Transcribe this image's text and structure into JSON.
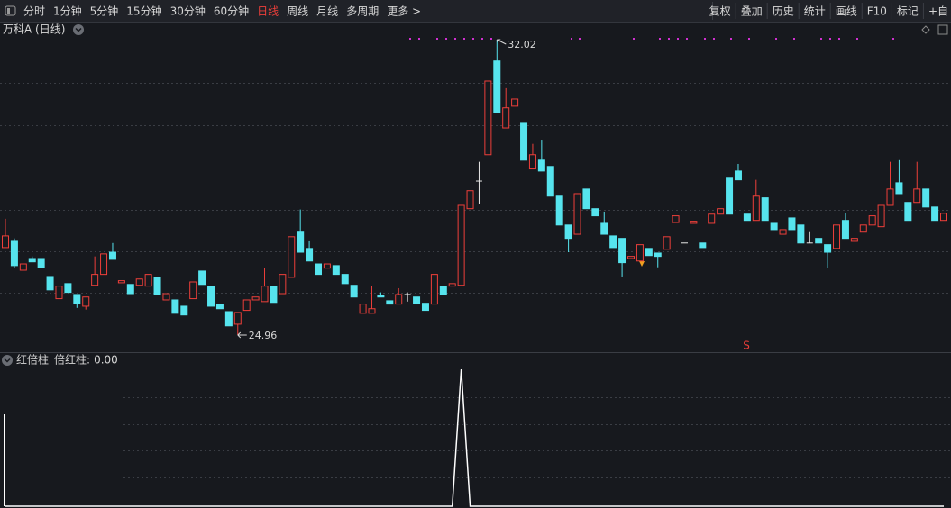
{
  "toolbar": {
    "periods": [
      {
        "label": "分时"
      },
      {
        "label": "1分钟"
      },
      {
        "label": "5分钟"
      },
      {
        "label": "15分钟"
      },
      {
        "label": "30分钟"
      },
      {
        "label": "60分钟"
      },
      {
        "label": "日线",
        "active": true
      },
      {
        "label": "周线"
      },
      {
        "label": "月线"
      },
      {
        "label": "多周期"
      },
      {
        "label": "更多 >"
      }
    ],
    "tools": [
      "复权",
      "叠加",
      "历史",
      "统计",
      "画线",
      "F10",
      "标记",
      "+自"
    ]
  },
  "chart_data": {
    "type": "candlestick",
    "title": "万科A (日线)",
    "up_color": "#ee3f3a",
    "down_color": "#56e4ee",
    "signal_label": "S",
    "ohlc": [
      [
        27.05,
        27.74,
        27.05,
        27.33
      ],
      [
        27.2,
        27.27,
        26.56,
        26.62
      ],
      [
        26.51,
        26.66,
        26.51,
        26.66
      ],
      [
        26.79,
        26.84,
        26.71,
        26.71
      ],
      [
        26.79,
        26.79,
        26.58,
        26.58
      ],
      [
        26.36,
        26.36,
        26.04,
        26.04
      ],
      [
        25.83,
        26.13,
        25.83,
        26.13
      ],
      [
        26.19,
        26.19,
        25.98,
        25.98
      ],
      [
        25.93,
        25.93,
        25.61,
        25.72
      ],
      [
        25.65,
        25.87,
        25.57,
        25.87
      ],
      [
        26.15,
        26.84,
        26.15,
        26.41
      ],
      [
        26.41,
        26.9,
        26.41,
        26.9
      ],
      [
        26.94,
        27.16,
        26.77,
        26.77
      ],
      [
        26.21,
        26.26,
        26.21,
        26.26
      ],
      [
        26.17,
        26.17,
        25.95,
        25.95
      ],
      [
        26.15,
        26.3,
        26.15,
        26.3
      ],
      [
        26.13,
        26.41,
        26.13,
        26.41
      ],
      [
        26.34,
        26.34,
        25.93,
        25.93
      ],
      [
        25.8,
        25.95,
        25.8,
        25.95
      ],
      [
        25.8,
        25.8,
        25.48,
        25.48
      ],
      [
        25.65,
        25.65,
        25.44,
        25.44
      ],
      [
        25.83,
        26.23,
        25.83,
        26.23
      ],
      [
        26.49,
        26.49,
        26.17,
        26.17
      ],
      [
        26.13,
        26.13,
        25.65,
        25.65
      ],
      [
        25.7,
        25.7,
        25.59,
        25.59
      ],
      [
        25.52,
        25.52,
        25.18,
        25.18
      ],
      [
        25.22,
        25.5,
        24.96,
        25.5
      ],
      [
        25.55,
        25.8,
        25.55,
        25.8
      ],
      [
        25.8,
        25.87,
        25.8,
        25.87
      ],
      [
        25.76,
        26.56,
        25.76,
        26.13
      ],
      [
        26.13,
        26.13,
        25.74,
        25.74
      ],
      [
        25.95,
        26.41,
        25.95,
        26.41
      ],
      [
        26.34,
        27.31,
        26.34,
        27.31
      ],
      [
        27.42,
        27.96,
        26.94,
        26.94
      ],
      [
        27.03,
        27.2,
        26.73,
        26.73
      ],
      [
        26.66,
        26.66,
        26.41,
        26.41
      ],
      [
        26.56,
        26.66,
        26.56,
        26.66
      ],
      [
        26.62,
        26.62,
        26.41,
        26.41
      ],
      [
        26.41,
        26.41,
        26.19,
        26.19
      ],
      [
        26.15,
        26.15,
        25.87,
        25.87
      ],
      [
        25.48,
        25.7,
        25.48,
        25.7
      ],
      [
        25.48,
        26.13,
        25.48,
        25.59
      ],
      [
        25.91,
        25.98,
        25.87,
        25.87
      ],
      [
        25.78,
        25.78,
        25.7,
        25.7
      ],
      [
        25.7,
        26.08,
        25.7,
        25.93
      ],
      [
        25.93,
        25.98,
        25.76,
        25.93
      ],
      [
        25.87,
        25.87,
        25.72,
        25.72
      ],
      [
        25.72,
        25.72,
        25.55,
        25.55
      ],
      [
        25.7,
        26.41,
        25.7,
        26.41
      ],
      [
        26.13,
        26.13,
        25.93,
        25.93
      ],
      [
        26.13,
        26.19,
        26.13,
        26.19
      ],
      [
        26.15,
        28.06,
        26.15,
        28.06
      ],
      [
        27.98,
        28.41,
        27.98,
        28.41
      ],
      [
        28.64,
        29.1,
        28.09,
        28.64
      ],
      [
        29.27,
        31.03,
        29.27,
        31.03
      ],
      [
        31.51,
        32.02,
        30.28,
        30.28
      ],
      [
        29.91,
        30.86,
        29.91,
        30.39
      ],
      [
        30.43,
        30.6,
        30.43,
        30.6
      ],
      [
        30.02,
        30.02,
        29.14,
        29.14
      ],
      [
        28.93,
        29.53,
        28.93,
        29.27
      ],
      [
        29.14,
        29.63,
        28.88,
        28.88
      ],
      [
        28.99,
        28.99,
        28.28,
        28.28
      ],
      [
        28.28,
        28.28,
        27.59,
        27.59
      ],
      [
        27.59,
        27.59,
        26.94,
        27.27
      ],
      [
        27.37,
        28.34,
        27.37,
        28.34
      ],
      [
        28.45,
        28.45,
        27.98,
        27.98
      ],
      [
        27.98,
        27.98,
        27.81,
        27.81
      ],
      [
        27.63,
        27.91,
        27.37,
        27.37
      ],
      [
        27.33,
        27.33,
        27.05,
        27.05
      ],
      [
        27.27,
        27.27,
        26.36,
        26.69
      ],
      [
        26.79,
        26.84,
        26.79,
        26.84
      ],
      [
        26.73,
        27.12,
        26.73,
        27.12
      ],
      [
        27.03,
        27.03,
        26.86,
        26.86
      ],
      [
        26.92,
        26.92,
        26.58,
        26.84
      ],
      [
        27.01,
        27.31,
        27.01,
        27.31
      ],
      [
        27.65,
        27.81,
        27.65,
        27.81
      ],
      [
        27.16,
        27.16,
        27.16,
        27.16
      ],
      [
        27.63,
        27.68,
        27.63,
        27.68
      ],
      [
        27.16,
        27.16,
        27.05,
        27.05
      ],
      [
        27.63,
        27.85,
        27.63,
        27.85
      ],
      [
        27.85,
        27.98,
        27.85,
        27.98
      ],
      [
        28.71,
        28.71,
        27.85,
        27.85
      ],
      [
        28.88,
        29.05,
        28.67,
        28.67
      ],
      [
        27.85,
        27.85,
        27.7,
        27.7
      ],
      [
        27.7,
        28.67,
        27.7,
        28.28
      ],
      [
        28.24,
        28.24,
        27.7,
        27.7
      ],
      [
        27.63,
        27.63,
        27.48,
        27.48
      ],
      [
        27.37,
        27.48,
        27.37,
        27.48
      ],
      [
        27.76,
        27.76,
        27.48,
        27.48
      ],
      [
        27.59,
        27.59,
        27.16,
        27.16
      ],
      [
        27.16,
        27.42,
        27.16,
        27.16
      ],
      [
        27.27,
        27.27,
        27.16,
        27.16
      ],
      [
        27.12,
        27.12,
        26.56,
        26.94
      ],
      [
        27.03,
        27.59,
        27.03,
        27.59
      ],
      [
        27.7,
        27.87,
        27.27,
        27.27
      ],
      [
        27.2,
        27.27,
        27.2,
        27.27
      ],
      [
        27.42,
        27.59,
        27.42,
        27.59
      ],
      [
        27.59,
        27.81,
        27.59,
        27.81
      ],
      [
        27.55,
        28.06,
        27.55,
        28.06
      ],
      [
        28.06,
        29.1,
        28.06,
        28.45
      ],
      [
        28.6,
        29.14,
        28.34,
        28.34
      ],
      [
        28.13,
        28.13,
        27.7,
        27.7
      ],
      [
        28.13,
        29.1,
        28.13,
        28.45
      ],
      [
        28.45,
        28.45,
        28.02,
        28.02
      ],
      [
        28.02,
        28.02,
        27.7,
        27.7
      ],
      [
        27.7,
        27.87,
        27.7,
        27.87
      ]
    ],
    "indicator": {
      "title": "红倍柱",
      "name": "倍红柱:",
      "value_label": "0.00",
      "color": "#ffffff",
      "values": [
        0,
        0,
        0,
        0,
        0,
        0,
        0,
        0,
        0,
        0,
        0,
        0,
        0,
        0,
        0,
        0,
        0,
        0,
        0,
        0,
        0,
        0,
        0,
        0,
        0,
        0,
        0,
        0,
        0,
        0,
        0,
        0,
        0,
        0,
        0,
        0,
        0,
        0,
        0,
        0,
        0,
        0,
        0,
        0,
        0,
        0,
        0,
        0,
        0,
        0,
        0,
        1,
        0,
        0,
        0,
        0,
        0,
        0,
        0,
        0,
        0,
        0,
        0,
        0,
        0,
        0,
        0,
        0,
        0,
        0,
        0,
        0,
        0,
        0,
        0,
        0,
        0,
        0,
        0,
        0,
        0,
        0,
        0,
        0,
        0,
        0,
        0,
        0,
        0,
        0,
        0,
        0,
        0,
        0,
        0,
        0,
        0,
        0,
        0,
        0,
        0,
        0,
        0,
        0,
        0,
        0
      ]
    }
  }
}
